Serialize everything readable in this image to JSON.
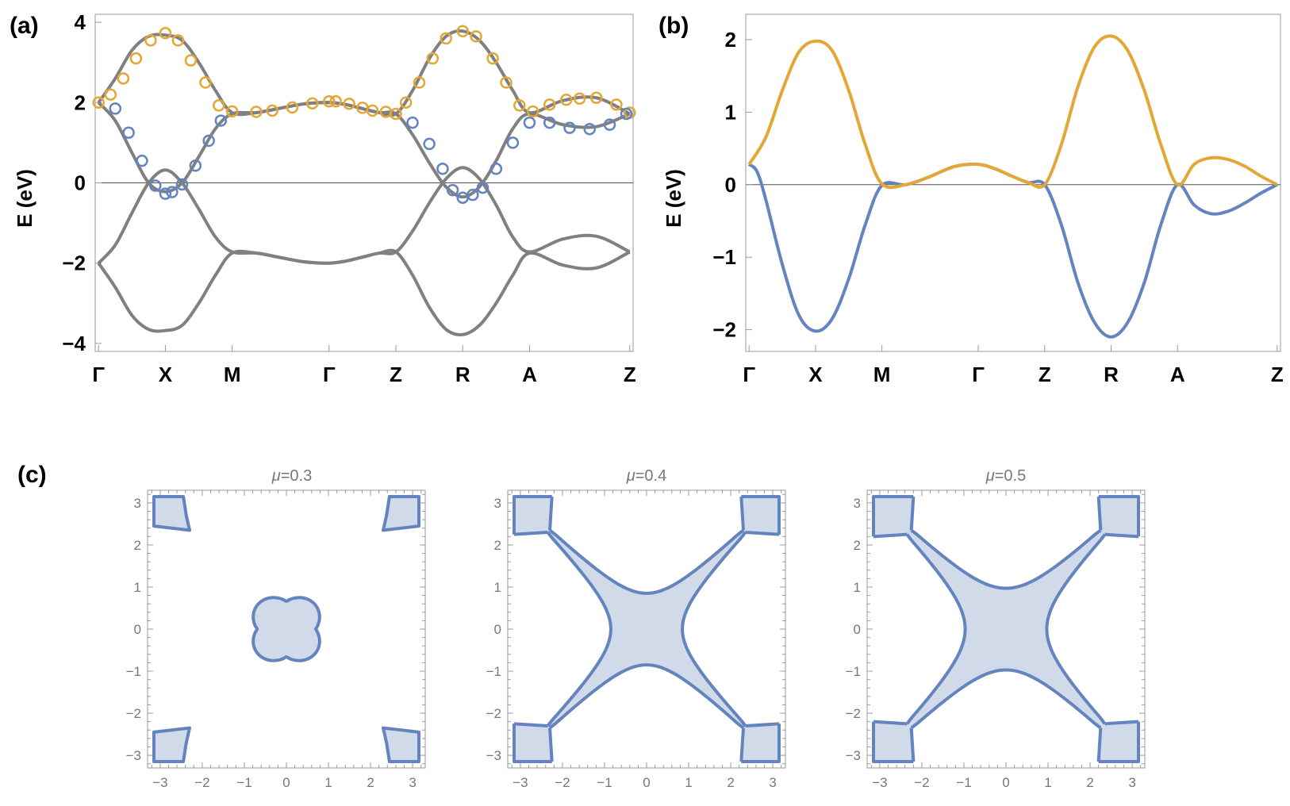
{
  "colors": {
    "orange": "#e3a737",
    "blue": "#6384bf",
    "gray": "#808080",
    "fill_blue": "#d0dae8",
    "axis": "#9a9a9a"
  },
  "chart_data": [
    {
      "id": "a",
      "type": "line",
      "panel_label": "(a)",
      "ylabel": "E (eV)",
      "ylim": [
        -4.2,
        4.2
      ],
      "yticks": [
        -4,
        -2,
        0,
        2,
        4
      ],
      "ytick_labels": [
        "−4",
        "−2",
        "0",
        "2",
        "4"
      ],
      "xtick_labels": [
        "Γ",
        "X",
        "M",
        "Γ",
        "Z",
        "R",
        "A",
        "Z"
      ],
      "xtick_positions": [
        0,
        1,
        2,
        3.45,
        4.45,
        5.45,
        6.45,
        7.95
      ],
      "xlim": [
        -0.05,
        8.0
      ],
      "gray_curves": [
        {
          "name": "band 1",
          "points": [
            [
              0,
              2.0
            ],
            [
              0.25,
              2.6
            ],
            [
              0.5,
              3.3
            ],
            [
              0.75,
              3.65
            ],
            [
              1,
              3.68
            ],
            [
              1.25,
              3.55
            ],
            [
              1.5,
              3.0
            ],
            [
              1.75,
              2.3
            ],
            [
              2,
              1.75
            ],
            [
              2.36,
              1.75
            ],
            [
              2.72,
              1.86
            ],
            [
              3.09,
              1.97
            ],
            [
              3.45,
              2.0
            ],
            [
              3.7,
              1.95
            ],
            [
              3.95,
              1.85
            ],
            [
              4.2,
              1.75
            ],
            [
              4.45,
              1.72
            ],
            [
              4.7,
              2.3
            ],
            [
              4.95,
              3.1
            ],
            [
              5.2,
              3.65
            ],
            [
              5.45,
              3.78
            ],
            [
              5.7,
              3.55
            ],
            [
              5.95,
              3.0
            ],
            [
              6.2,
              2.3
            ],
            [
              6.45,
              1.75
            ],
            [
              6.95,
              2.05
            ],
            [
              7.45,
              2.12
            ],
            [
              7.95,
              1.72
            ]
          ]
        },
        {
          "name": "band 2",
          "points": [
            [
              0,
              2.0
            ],
            [
              0.25,
              1.55
            ],
            [
              0.5,
              0.75
            ],
            [
              0.75,
              0.0
            ],
            [
              1,
              -0.22
            ],
            [
              1.25,
              0.0
            ],
            [
              1.5,
              0.65
            ],
            [
              1.75,
              1.35
            ],
            [
              2,
              1.72
            ],
            [
              2.36,
              1.75
            ],
            [
              2.72,
              1.86
            ],
            [
              3.09,
              1.97
            ],
            [
              3.45,
              2.0
            ],
            [
              3.7,
              1.95
            ],
            [
              3.95,
              1.85
            ],
            [
              4.2,
              1.75
            ],
            [
              4.45,
              1.72
            ],
            [
              4.7,
              1.2
            ],
            [
              4.95,
              0.5
            ],
            [
              5.2,
              -0.1
            ],
            [
              5.45,
              -0.35
            ],
            [
              5.7,
              -0.1
            ],
            [
              5.95,
              0.55
            ],
            [
              6.2,
              1.35
            ],
            [
              6.45,
              1.72
            ],
            [
              6.95,
              1.45
            ],
            [
              7.45,
              1.4
            ],
            [
              7.95,
              1.72
            ]
          ]
        },
        {
          "name": "band 3",
          "points": [
            [
              0,
              -2.0
            ],
            [
              0.25,
              -1.55
            ],
            [
              0.5,
              -0.75
            ],
            [
              0.75,
              0.0
            ],
            [
              1,
              0.32
            ],
            [
              1.25,
              0.0
            ],
            [
              1.5,
              -0.65
            ],
            [
              1.75,
              -1.35
            ],
            [
              2,
              -1.72
            ],
            [
              2.36,
              -1.75
            ],
            [
              2.72,
              -1.86
            ],
            [
              3.09,
              -1.97
            ],
            [
              3.45,
              -2.0
            ],
            [
              3.7,
              -1.95
            ],
            [
              3.95,
              -1.85
            ],
            [
              4.2,
              -1.75
            ],
            [
              4.45,
              -1.72
            ],
            [
              4.7,
              -1.2
            ],
            [
              4.95,
              -0.5
            ],
            [
              5.2,
              0.1
            ],
            [
              5.45,
              0.38
            ],
            [
              5.7,
              0.1
            ],
            [
              5.95,
              -0.55
            ],
            [
              6.2,
              -1.35
            ],
            [
              6.45,
              -1.72
            ],
            [
              6.95,
              -1.4
            ],
            [
              7.45,
              -1.33
            ],
            [
              7.95,
              -1.72
            ]
          ]
        },
        {
          "name": "band 4",
          "points": [
            [
              0,
              -2.0
            ],
            [
              0.25,
              -2.6
            ],
            [
              0.5,
              -3.3
            ],
            [
              0.75,
              -3.65
            ],
            [
              1,
              -3.68
            ],
            [
              1.25,
              -3.55
            ],
            [
              1.5,
              -3.0
            ],
            [
              1.75,
              -2.3
            ],
            [
              2,
              -1.75
            ],
            [
              2.36,
              -1.75
            ],
            [
              2.72,
              -1.86
            ],
            [
              3.09,
              -1.97
            ],
            [
              3.45,
              -2.0
            ],
            [
              3.7,
              -1.95
            ],
            [
              3.95,
              -1.85
            ],
            [
              4.2,
              -1.75
            ],
            [
              4.45,
              -1.72
            ],
            [
              4.7,
              -2.3
            ],
            [
              4.95,
              -3.1
            ],
            [
              5.2,
              -3.65
            ],
            [
              5.45,
              -3.78
            ],
            [
              5.7,
              -3.55
            ],
            [
              5.95,
              -3.0
            ],
            [
              6.2,
              -2.3
            ],
            [
              6.45,
              -1.75
            ],
            [
              6.95,
              -2.05
            ],
            [
              7.45,
              -2.12
            ],
            [
              7.95,
              -1.72
            ]
          ]
        }
      ],
      "orange_markers": [
        [
          0,
          2.0
        ],
        [
          0.18,
          2.2
        ],
        [
          0.37,
          2.6
        ],
        [
          0.56,
          3.1
        ],
        [
          0.78,
          3.55
        ],
        [
          1.0,
          3.73
        ],
        [
          1.19,
          3.55
        ],
        [
          1.38,
          3.05
        ],
        [
          1.6,
          2.5
        ],
        [
          1.8,
          1.93
        ],
        [
          2.0,
          1.78
        ],
        [
          2.36,
          1.77
        ],
        [
          2.6,
          1.8
        ],
        [
          2.9,
          1.88
        ],
        [
          3.2,
          1.98
        ],
        [
          3.45,
          2.03
        ],
        [
          3.55,
          2.03
        ],
        [
          3.75,
          1.97
        ],
        [
          3.95,
          1.87
        ],
        [
          4.1,
          1.8
        ],
        [
          4.3,
          1.77
        ],
        [
          4.45,
          1.72
        ],
        [
          4.6,
          2.0
        ],
        [
          4.8,
          2.5
        ],
        [
          5.0,
          3.1
        ],
        [
          5.2,
          3.6
        ],
        [
          5.45,
          3.78
        ],
        [
          5.65,
          3.65
        ],
        [
          5.9,
          3.1
        ],
        [
          6.1,
          2.5
        ],
        [
          6.3,
          1.93
        ],
        [
          6.5,
          1.78
        ],
        [
          6.75,
          1.95
        ],
        [
          7.0,
          2.07
        ],
        [
          7.2,
          2.1
        ],
        [
          7.45,
          2.12
        ],
        [
          7.75,
          1.95
        ],
        [
          7.95,
          1.75
        ]
      ],
      "blue_markers": [
        [
          0.25,
          1.85
        ],
        [
          0.45,
          1.25
        ],
        [
          0.65,
          0.55
        ],
        [
          0.85,
          -0.07
        ],
        [
          1.0,
          -0.27
        ],
        [
          1.1,
          -0.23
        ],
        [
          1.25,
          -0.04
        ],
        [
          1.45,
          0.43
        ],
        [
          1.65,
          1.05
        ],
        [
          1.83,
          1.55
        ],
        [
          4.7,
          1.5
        ],
        [
          4.95,
          0.97
        ],
        [
          5.15,
          0.35
        ],
        [
          5.3,
          -0.18
        ],
        [
          5.45,
          -0.37
        ],
        [
          5.6,
          -0.3
        ],
        [
          5.75,
          -0.12
        ],
        [
          5.95,
          0.35
        ],
        [
          6.2,
          1.0
        ],
        [
          6.45,
          1.5
        ],
        [
          6.75,
          1.5
        ],
        [
          7.05,
          1.37
        ],
        [
          7.35,
          1.34
        ],
        [
          7.65,
          1.45
        ],
        [
          7.9,
          1.72
        ]
      ]
    },
    {
      "id": "b",
      "type": "line",
      "panel_label": "(b)",
      "ylabel": "E (eV)",
      "ylim": [
        -2.3,
        2.35
      ],
      "yticks": [
        -2,
        -1,
        0,
        1,
        2
      ],
      "ytick_labels": [
        "−2",
        "−1",
        "0",
        "1",
        "2"
      ],
      "xtick_labels": [
        "Γ",
        "X",
        "M",
        "Γ",
        "Z",
        "R",
        "A",
        "Z"
      ],
      "xtick_positions": [
        0,
        1,
        2,
        3.45,
        4.45,
        5.45,
        6.45,
        7.95
      ],
      "xlim": [
        -0.05,
        8.0
      ],
      "series": [
        {
          "name": "upper band",
          "color_key": "orange",
          "points": [
            [
              0,
              0.28
            ],
            [
              0.25,
              0.65
            ],
            [
              0.5,
              1.3
            ],
            [
              0.75,
              1.83
            ],
            [
              1,
              1.98
            ],
            [
              1.25,
              1.85
            ],
            [
              1.5,
              1.3
            ],
            [
              1.75,
              0.55
            ],
            [
              2,
              0.01
            ],
            [
              2.36,
              0.0
            ],
            [
              2.72,
              0.11
            ],
            [
              3.09,
              0.25
            ],
            [
              3.45,
              0.28
            ],
            [
              3.7,
              0.22
            ],
            [
              3.95,
              0.12
            ],
            [
              4.2,
              0.03
            ],
            [
              4.45,
              0.0
            ],
            [
              4.7,
              0.55
            ],
            [
              4.95,
              1.35
            ],
            [
              5.2,
              1.9
            ],
            [
              5.45,
              2.05
            ],
            [
              5.7,
              1.85
            ],
            [
              5.95,
              1.3
            ],
            [
              6.2,
              0.55
            ],
            [
              6.45,
              0.0
            ],
            [
              6.7,
              0.28
            ],
            [
              6.95,
              0.37
            ],
            [
              7.2,
              0.35
            ],
            [
              7.45,
              0.26
            ],
            [
              7.7,
              0.12
            ],
            [
              7.95,
              0.0
            ]
          ]
        },
        {
          "name": "lower band",
          "color_key": "blue",
          "points": [
            [
              0,
              0.28
            ],
            [
              0.12,
              0.18
            ],
            [
              0.25,
              -0.2
            ],
            [
              0.5,
              -1.1
            ],
            [
              0.75,
              -1.8
            ],
            [
              1,
              -2.02
            ],
            [
              1.25,
              -1.85
            ],
            [
              1.5,
              -1.3
            ],
            [
              1.75,
              -0.55
            ],
            [
              2,
              -0.01
            ],
            [
              2.36,
              0.0
            ],
            [
              2.72,
              0.11
            ],
            [
              3.09,
              0.25
            ],
            [
              3.45,
              0.28
            ],
            [
              3.7,
              0.22
            ],
            [
              3.95,
              0.12
            ],
            [
              4.2,
              0.03
            ],
            [
              4.45,
              0.0
            ],
            [
              4.7,
              -0.55
            ],
            [
              4.95,
              -1.35
            ],
            [
              5.2,
              -1.9
            ],
            [
              5.45,
              -2.1
            ],
            [
              5.7,
              -1.9
            ],
            [
              5.95,
              -1.35
            ],
            [
              6.2,
              -0.55
            ],
            [
              6.45,
              0.0
            ],
            [
              6.7,
              -0.28
            ],
            [
              6.95,
              -0.4
            ],
            [
              7.2,
              -0.37
            ],
            [
              7.45,
              -0.26
            ],
            [
              7.7,
              -0.12
            ],
            [
              7.95,
              0.0
            ]
          ]
        }
      ]
    },
    {
      "id": "c",
      "type": "contour",
      "panel_label": "(c)",
      "xlim": [
        -3.3,
        3.3
      ],
      "ylim": [
        -3.3,
        3.3
      ],
      "ticks": [
        -3,
        -2,
        -1,
        0,
        1,
        2,
        3
      ],
      "tick_labels": [
        "−3",
        "−2",
        "−1",
        "0",
        "1",
        "2",
        "3"
      ],
      "subplots": [
        {
          "title_prefix": "μ",
          "title_value": "=0.3",
          "kind": "islands",
          "center_half_width": 0.85,
          "corner_inner": 2.35
        },
        {
          "title_prefix": "μ",
          "title_value": "=0.4",
          "kind": "cross",
          "neck": 0.85,
          "arm_end": 2.3,
          "corner_inner": 2.3,
          "overlap_edges": true
        },
        {
          "title_prefix": "μ",
          "title_value": "=0.5",
          "kind": "cross",
          "neck": 0.97,
          "arm_end": 2.25,
          "corner_inner": 2.25,
          "overlap_edges": false
        }
      ]
    }
  ]
}
